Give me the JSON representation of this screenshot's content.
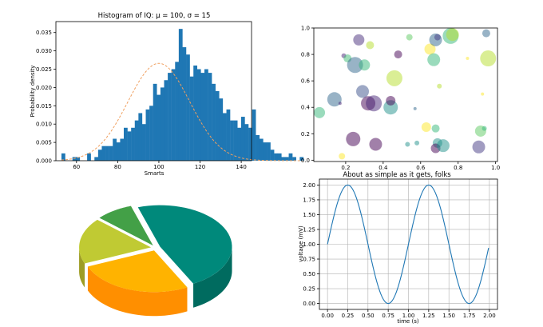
{
  "chart_data": [
    {
      "type": "bar",
      "title": "Histogram of IQ: μ = 100, σ = 15",
      "xlabel": "Smarts",
      "ylabel": "Probability density",
      "xlim": [
        50,
        145
      ],
      "ylim": [
        0,
        0.038
      ],
      "xticks": [
        "60",
        "80",
        "100",
        "120",
        "140"
      ],
      "yticks": [
        "0.000",
        "0.005",
        "0.010",
        "0.015",
        "0.020",
        "0.025",
        "0.030",
        "0.035"
      ],
      "bin_start": 52.7,
      "bin_width": 1.78,
      "values": [
        0.002,
        0.0,
        0.0,
        0.001,
        0.001,
        0.0,
        0.0,
        0.002,
        0.0,
        0.001,
        0.003,
        0.004,
        0.004,
        0.004,
        0.006,
        0.005,
        0.006,
        0.009,
        0.008,
        0.009,
        0.011,
        0.013,
        0.01,
        0.014,
        0.015,
        0.021,
        0.018,
        0.02,
        0.022,
        0.024,
        0.025,
        0.027,
        0.036,
        0.031,
        0.029,
        0.023,
        0.026,
        0.025,
        0.024,
        0.025,
        0.024,
        0.021,
        0.019,
        0.017,
        0.013,
        0.014,
        0.011,
        0.011,
        0.009,
        0.012,
        0.01,
        0.009,
        0.014,
        0.007,
        0.006,
        0.005,
        0.005,
        0.003,
        0.002,
        0.002,
        0.001,
        0.001,
        0.002,
        0.001,
        0.0,
        0.001
      ],
      "fit": {
        "mu": 100,
        "sigma": 15,
        "style": "dashed",
        "color": "#f0a060"
      },
      "bar_color": "#1f77b4",
      "grid": false
    },
    {
      "type": "scatter",
      "xlim": [
        0.03,
        1.01
      ],
      "ylim": [
        -0.01,
        1.0
      ],
      "xticks": [
        "0.2",
        "0.4",
        "0.6",
        "0.8",
        "1.0"
      ],
      "yticks": [
        "0.0",
        "0.2",
        "0.4",
        "0.6",
        "0.8",
        "1.0"
      ],
      "alpha": 0.5,
      "points": [
        {
          "x": 0.06,
          "y": 0.36,
          "r": 7,
          "color": "#35b779"
        },
        {
          "x": 0.14,
          "y": 0.46,
          "r": 9,
          "color": "#31688e"
        },
        {
          "x": 0.17,
          "y": 0.43,
          "r": 2,
          "color": "#482677"
        },
        {
          "x": 0.18,
          "y": 0.03,
          "r": 4,
          "color": "#fde725"
        },
        {
          "x": 0.19,
          "y": 0.79,
          "r": 3,
          "color": "#482677"
        },
        {
          "x": 0.21,
          "y": 0.77,
          "r": 5,
          "color": "#3dbc74"
        },
        {
          "x": 0.24,
          "y": 0.16,
          "r": 9,
          "color": "#440154"
        },
        {
          "x": 0.25,
          "y": 0.72,
          "r": 10,
          "color": "#31688e"
        },
        {
          "x": 0.27,
          "y": 0.91,
          "r": 7,
          "color": "#472d7b"
        },
        {
          "x": 0.29,
          "y": 0.52,
          "r": 8,
          "color": "#3b528b"
        },
        {
          "x": 0.3,
          "y": 0.72,
          "r": 7,
          "color": "#35b779"
        },
        {
          "x": 0.32,
          "y": 0.43,
          "r": 9,
          "color": "#440154"
        },
        {
          "x": 0.33,
          "y": 0.87,
          "r": 5,
          "color": "#b5de2b"
        },
        {
          "x": 0.35,
          "y": 0.43,
          "r": 10,
          "color": "#482677"
        },
        {
          "x": 0.36,
          "y": 0.12,
          "r": 8,
          "color": "#440154"
        },
        {
          "x": 0.44,
          "y": 0.4,
          "r": 9,
          "color": "#21918c"
        },
        {
          "x": 0.44,
          "y": 0.45,
          "r": 6,
          "color": "#440154"
        },
        {
          "x": 0.46,
          "y": 0.62,
          "r": 10,
          "color": "#b5de2b"
        },
        {
          "x": 0.48,
          "y": 0.8,
          "r": 5,
          "color": "#440154"
        },
        {
          "x": 0.53,
          "y": 0.12,
          "r": 3,
          "color": "#21918c"
        },
        {
          "x": 0.54,
          "y": 0.93,
          "r": 4,
          "color": "#5ec962"
        },
        {
          "x": 0.57,
          "y": 0.39,
          "r": 2,
          "color": "#31688e"
        },
        {
          "x": 0.58,
          "y": 0.13,
          "r": 3,
          "color": "#21918c"
        },
        {
          "x": 0.63,
          "y": 0.25,
          "r": 6,
          "color": "#fde725"
        },
        {
          "x": 0.65,
          "y": 0.84,
          "r": 7,
          "color": "#fde725"
        },
        {
          "x": 0.67,
          "y": 0.76,
          "r": 8,
          "color": "#35b779"
        },
        {
          "x": 0.68,
          "y": 0.91,
          "r": 8,
          "color": "#31688e"
        },
        {
          "x": 0.69,
          "y": 0.93,
          "r": 4,
          "color": "#443983"
        },
        {
          "x": 0.68,
          "y": 0.24,
          "r": 5,
          "color": "#35b779"
        },
        {
          "x": 0.69,
          "y": 0.13,
          "r": 6,
          "color": "#21918c"
        },
        {
          "x": 0.68,
          "y": 0.09,
          "r": 6,
          "color": "#440154"
        },
        {
          "x": 0.7,
          "y": 0.56,
          "r": 3,
          "color": "#b5de2b"
        },
        {
          "x": 0.72,
          "y": 0.11,
          "r": 8,
          "color": "#21918c"
        },
        {
          "x": 0.76,
          "y": 0.94,
          "r": 10,
          "color": "#35b779"
        },
        {
          "x": 0.77,
          "y": 0.95,
          "r": 8,
          "color": "#b5de2b"
        },
        {
          "x": 0.91,
          "y": 0.1,
          "r": 8,
          "color": "#443983"
        },
        {
          "x": 0.92,
          "y": 0.22,
          "r": 7,
          "color": "#5ec962"
        },
        {
          "x": 0.93,
          "y": 0.5,
          "r": 2,
          "color": "#fde725"
        },
        {
          "x": 0.95,
          "y": 0.96,
          "r": 5,
          "color": "#31688e"
        },
        {
          "x": 0.96,
          "y": 0.77,
          "r": 10,
          "color": "#b5de2b"
        },
        {
          "x": 0.94,
          "y": 0.24,
          "r": 3,
          "color": "#35b779"
        },
        {
          "x": 0.85,
          "y": 0.77,
          "r": 2,
          "color": "#fde725"
        }
      ],
      "grid": false
    },
    {
      "type": "pie",
      "style": "3d",
      "slices": [
        {
          "value": 45,
          "color": "#00897b",
          "side_color": "#006b5f"
        },
        {
          "value": 25,
          "color": "#ffb300",
          "side_color": "#ff8f00"
        },
        {
          "value": 17,
          "color": "#c0ca33",
          "side_color": "#9e9d24"
        },
        {
          "value": 8,
          "color": "#43a047",
          "side_color": "#2e7d32"
        }
      ]
    },
    {
      "type": "line",
      "title": "About as simple as it gets, folks",
      "xlabel": "time (s)",
      "ylabel": "voltage (mV)",
      "xlim": [
        -0.1,
        2.1
      ],
      "ylim": [
        -0.1,
        2.1
      ],
      "xticks": [
        "0.00",
        "0.25",
        "0.50",
        "0.75",
        "1.00",
        "1.25",
        "1.50",
        "1.75",
        "2.00"
      ],
      "yticks": [
        "0.00",
        "0.25",
        "0.50",
        "0.75",
        "1.00",
        "1.25",
        "1.50",
        "1.75",
        "2.00"
      ],
      "function": "1 + sin(2πt)",
      "t_range": [
        0,
        1.99
      ],
      "color": "#1f77b4",
      "grid": true
    }
  ]
}
